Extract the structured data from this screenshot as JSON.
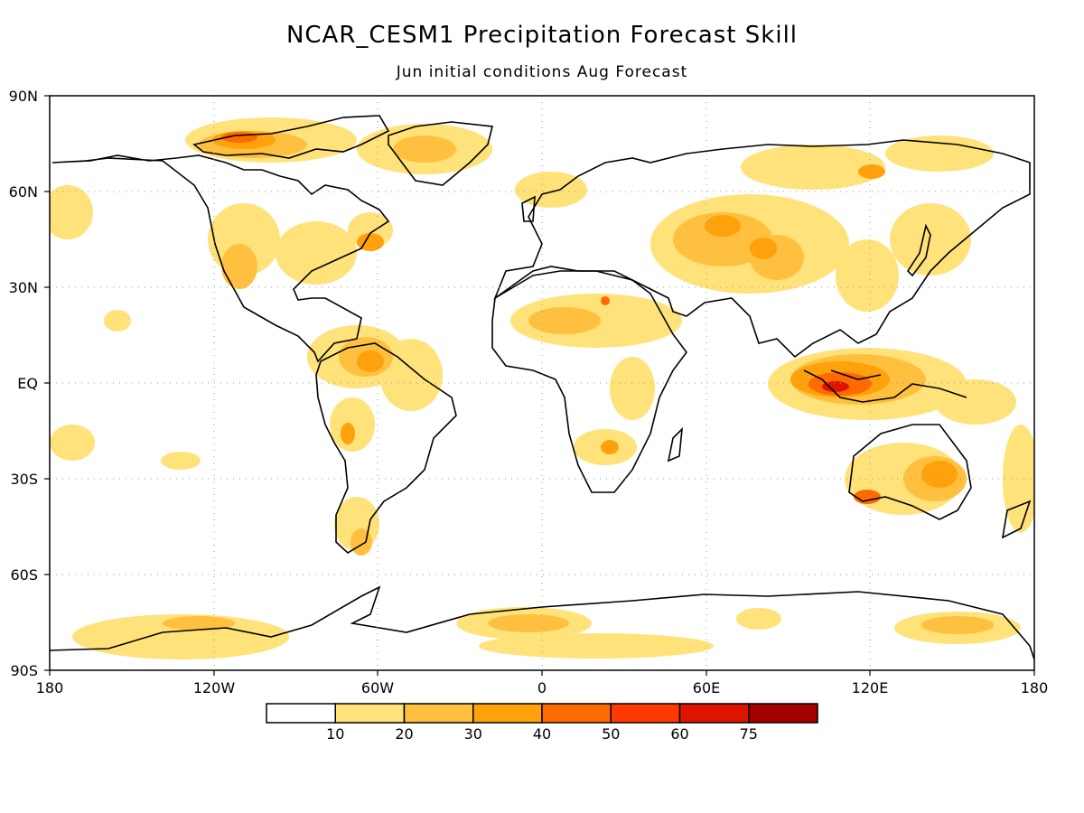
{
  "title": "NCAR_CESM1 Precipitation Forecast Skill",
  "subtitle": "Jun initial conditions  Aug Forecast",
  "axes": {
    "lat_labels": [
      "90N",
      "60N",
      "30N",
      "EQ",
      "30S",
      "60S",
      "90S"
    ],
    "lon_labels": [
      "180",
      "120W",
      "60W",
      "0",
      "60E",
      "120E",
      "180"
    ]
  },
  "colorbar": {
    "colors": [
      "#ffffff",
      "#ffe27a",
      "#ffc03f",
      "#ffa10a",
      "#ff6a00",
      "#ff3a00",
      "#dd1500",
      "#a50000"
    ],
    "tick_labels": [
      "10",
      "20",
      "30",
      "40",
      "50",
      "60",
      "75"
    ]
  },
  "map": {
    "projection": "cylindrical equidistant",
    "grid": "dotted",
    "coastlines": true
  }
}
